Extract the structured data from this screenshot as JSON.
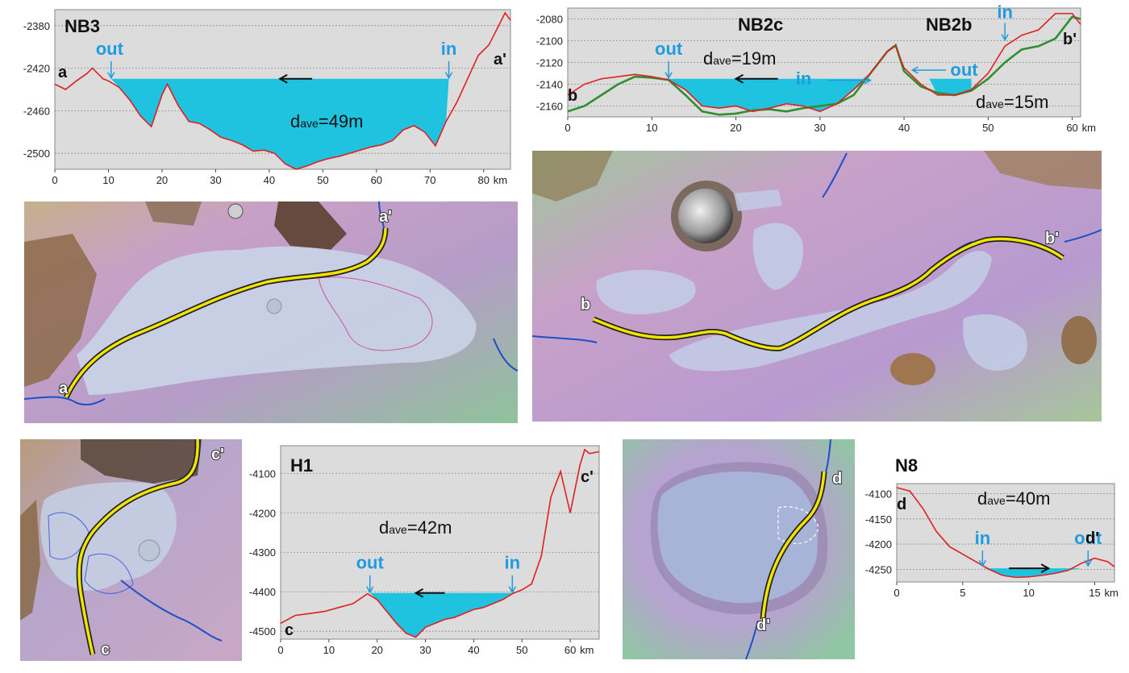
{
  "colors": {
    "profile": "#e02020",
    "profile2": "#2f8f2f",
    "water": "#1fc3e0",
    "accent": "#1f9be0",
    "arrow": "#111111",
    "path": "#f2e400"
  },
  "labels": {
    "in": "in",
    "out": "out",
    "km": "km"
  },
  "chart_data": [
    {
      "type": "area",
      "id": "NB3",
      "title": "NB3",
      "start": "a",
      "end": "a'",
      "dave": {
        "prefix": "d",
        "sub": "ave",
        "value": "=49m"
      },
      "xlim": [
        0,
        85
      ],
      "ylim": [
        -2515,
        -2365
      ],
      "xticks": [
        "0",
        "10",
        "20",
        "30",
        "40",
        "50",
        "60",
        "70",
        "80"
      ],
      "yticks": [
        "-2380",
        "-2420",
        "-2460",
        "-2500"
      ],
      "water_level": -2430,
      "out_x": 10.5,
      "in_x": 73.5,
      "flow": "left",
      "x": [
        0,
        2,
        4,
        6,
        7,
        9,
        10,
        12,
        14,
        16,
        18,
        20,
        21,
        23,
        25,
        27,
        29,
        31,
        33,
        35,
        37,
        39,
        41,
        43,
        45,
        47,
        49,
        51,
        53,
        55,
        57,
        59,
        61,
        63,
        65,
        67,
        69,
        71,
        73,
        75,
        77,
        79,
        81,
        83,
        84,
        85
      ],
      "series": [
        {
          "values": [
            -2435,
            -2440,
            -2432,
            -2425,
            -2420,
            -2430,
            -2432,
            -2438,
            -2450,
            -2465,
            -2475,
            -2445,
            -2435,
            -2455,
            -2470,
            -2472,
            -2478,
            -2485,
            -2488,
            -2492,
            -2498,
            -2497,
            -2500,
            -2510,
            -2515,
            -2512,
            -2508,
            -2505,
            -2503,
            -2500,
            -2497,
            -2494,
            -2492,
            -2488,
            -2478,
            -2474,
            -2480,
            -2493,
            -2470,
            -2452,
            -2430,
            -2408,
            -2398,
            -2378,
            -2368,
            -2375
          ]
        }
      ]
    },
    {
      "type": "area",
      "id": "NB2",
      "title": "NB2c",
      "title2": "NB2b",
      "start": "b",
      "end": "b'",
      "dave": {
        "prefix": "d",
        "sub": "ave",
        "value": "=19m"
      },
      "dave2": {
        "prefix": "d",
        "sub": "ave",
        "value": "=15m"
      },
      "xlim": [
        0,
        61
      ],
      "ylim": [
        -2170,
        -2070
      ],
      "xticks": [
        "0",
        "10",
        "20",
        "30",
        "40",
        "50",
        "60"
      ],
      "yticks": [
        "-2080",
        "-2100",
        "-2120",
        "-2140",
        "-2160"
      ],
      "pools": [
        {
          "level": -2135,
          "x0": 12,
          "x1": 36
        },
        {
          "level": -2135,
          "x0": 43,
          "x1": 48
        }
      ],
      "out_x": 12,
      "in_x": 36,
      "out2_x": 43,
      "in2_x": 52,
      "flow": "left",
      "x": [
        0,
        2,
        4,
        6,
        8,
        10,
        12,
        14,
        16,
        18,
        20,
        22,
        24,
        26,
        28,
        30,
        32,
        34,
        36,
        38,
        39,
        40,
        42,
        44,
        46,
        48,
        50,
        52,
        54,
        56,
        58,
        60,
        61
      ],
      "series": [
        {
          "values": [
            -2150,
            -2140,
            -2135,
            -2133,
            -2131,
            -2133,
            -2136,
            -2145,
            -2160,
            -2162,
            -2160,
            -2165,
            -2162,
            -2158,
            -2160,
            -2165,
            -2158,
            -2145,
            -2130,
            -2110,
            -2105,
            -2125,
            -2140,
            -2150,
            -2150,
            -2145,
            -2130,
            -2105,
            -2095,
            -2090,
            -2075,
            -2075,
            -2085
          ]
        },
        {
          "values": [
            -2165,
            -2160,
            -2150,
            -2140,
            -2133,
            -2134,
            -2136,
            -2150,
            -2165,
            -2168,
            -2167,
            -2164,
            -2163,
            -2165,
            -2162,
            -2160,
            -2158,
            -2150,
            -2130,
            -2110,
            -2104,
            -2128,
            -2142,
            -2148,
            -2150,
            -2146,
            -2135,
            -2120,
            -2108,
            -2105,
            -2098,
            -2078,
            -2080
          ]
        }
      ]
    },
    {
      "type": "area",
      "id": "H1",
      "title": "H1",
      "start": "c",
      "end": "c'",
      "dave": {
        "prefix": "d",
        "sub": "ave",
        "value": "=42m"
      },
      "xlim": [
        0,
        66
      ],
      "ylim": [
        -4520,
        -4030
      ],
      "xticks": [
        "0",
        "10",
        "20",
        "30",
        "40",
        "50",
        "60"
      ],
      "yticks": [
        "-4100",
        "-4200",
        "-4300",
        "-4400",
        "-4500"
      ],
      "water_level": -4403,
      "out_x": 18.5,
      "in_x": 48,
      "flow": "left",
      "x": [
        0,
        3,
        6,
        9,
        12,
        15,
        18,
        20,
        22,
        24,
        26,
        28,
        30,
        32,
        34,
        36,
        38,
        40,
        42,
        44,
        46,
        48,
        50,
        52,
        54,
        56,
        58,
        60,
        62,
        63,
        64,
        66
      ],
      "series": [
        {
          "values": [
            -4480,
            -4460,
            -4455,
            -4450,
            -4440,
            -4430,
            -4405,
            -4420,
            -4450,
            -4480,
            -4505,
            -4515,
            -4490,
            -4480,
            -4470,
            -4465,
            -4455,
            -4445,
            -4440,
            -4430,
            -4420,
            -4405,
            -4395,
            -4380,
            -4310,
            -4160,
            -4095,
            -4200,
            -4080,
            -4040,
            -4050,
            -4045
          ]
        }
      ]
    },
    {
      "type": "area",
      "id": "N8",
      "title": "N8",
      "start": "d",
      "end": "d'",
      "dave": {
        "prefix": "d",
        "sub": "ave",
        "value": "=40m"
      },
      "xlim": [
        0,
        16.5
      ],
      "ylim": [
        -4275,
        -4080
      ],
      "xticks": [
        "0",
        "5",
        "10",
        "15"
      ],
      "yticks": [
        "-4100",
        "-4150",
        "-4200",
        "-4250"
      ],
      "water_level": -4248,
      "in_x": 6.5,
      "out_x": 14.5,
      "flow": "right",
      "x": [
        0,
        1,
        2,
        3,
        4,
        5,
        6,
        7,
        8,
        9,
        10,
        11,
        12,
        13,
        14,
        15,
        16,
        16.5
      ],
      "series": [
        {
          "values": [
            -4088,
            -4095,
            -4130,
            -4175,
            -4205,
            -4220,
            -4235,
            -4250,
            -4262,
            -4266,
            -4265,
            -4262,
            -4258,
            -4252,
            -4238,
            -4228,
            -4235,
            -4245
          ]
        }
      ]
    }
  ],
  "maps": [
    {
      "id": "map-a",
      "start": "a",
      "end": "a'"
    },
    {
      "id": "map-b",
      "start": "b",
      "end": "b'"
    },
    {
      "id": "map-c",
      "start": "c",
      "end": "c'"
    },
    {
      "id": "map-d",
      "start": "d",
      "end": "d'"
    }
  ]
}
